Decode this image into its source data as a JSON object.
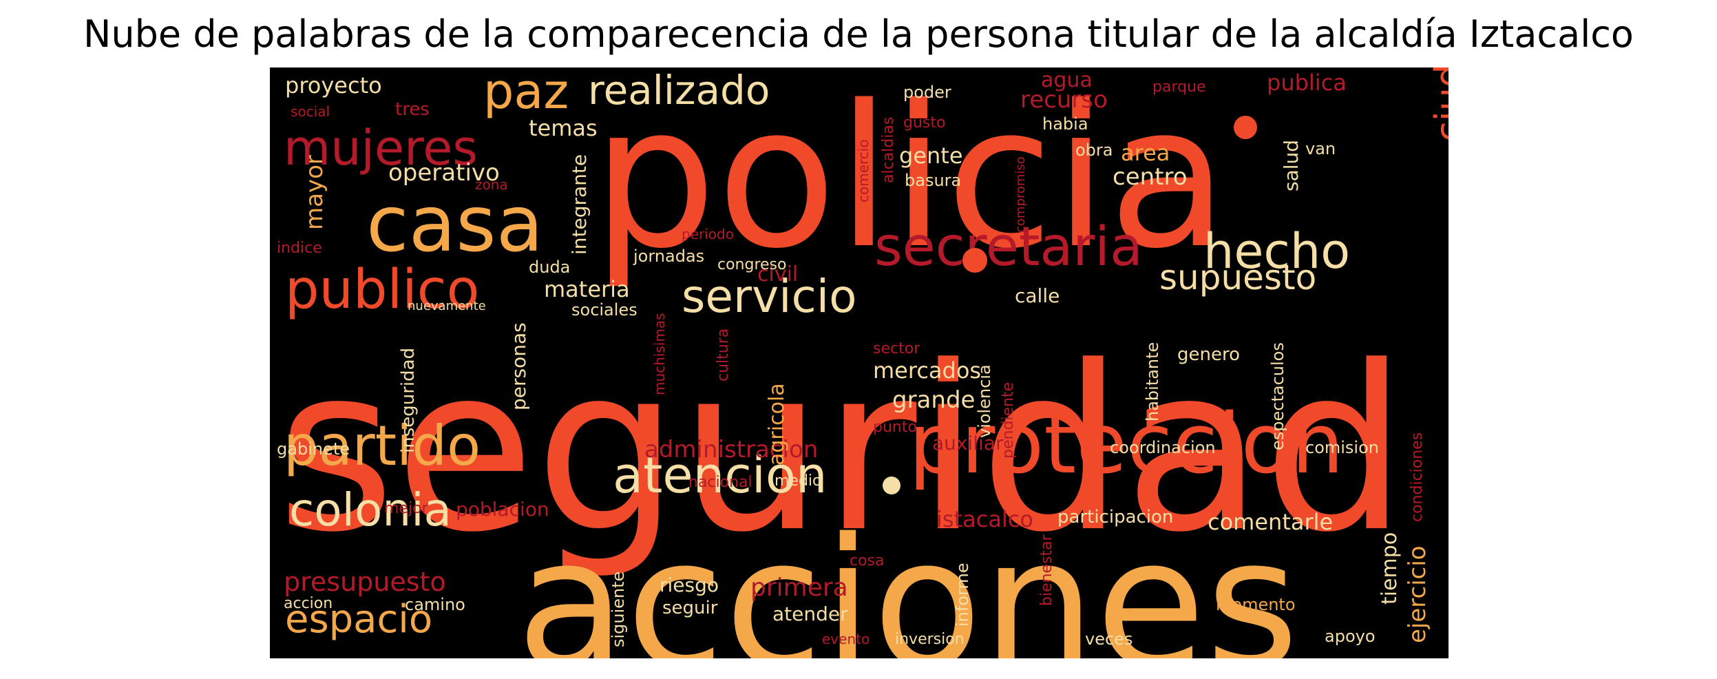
{
  "title": "Nube de palabras de la comparecencia de la persona titular de la alcaldía Iztacalco",
  "palette": {
    "background": "#000000",
    "red": "#f04a2a",
    "orange": "#f4a84a",
    "cream": "#f5dfa6",
    "darkred": "#b51a2a"
  },
  "words": [
    {
      "id": "w-seguridad",
      "text": "seguridad",
      "c": "red"
    },
    {
      "id": "w-policia",
      "text": "policia",
      "c": "red"
    },
    {
      "id": "w-acciones",
      "text": "acciones",
      "c": "orange"
    },
    {
      "id": "w-proteccion",
      "text": "proteccion",
      "c": "red"
    },
    {
      "id": "w-casa",
      "text": "casa",
      "c": "orange"
    },
    {
      "id": "w-secretaria",
      "text": "secretaria",
      "c": "darkred"
    },
    {
      "id": "w-publico",
      "text": "publico",
      "c": "red"
    },
    {
      "id": "w-servicio",
      "text": "servicio",
      "c": "cream"
    },
    {
      "id": "w-hecho",
      "text": "hecho",
      "c": "cream"
    },
    {
      "id": "w-partido",
      "text": "partido",
      "c": "orange"
    },
    {
      "id": "w-atencion",
      "text": "atencion",
      "c": "cream"
    },
    {
      "id": "w-colonia",
      "text": "colonia",
      "c": "cream"
    },
    {
      "id": "w-mujeres",
      "text": "mujeres",
      "c": "darkred"
    },
    {
      "id": "w-paz",
      "text": "paz",
      "c": "orange"
    },
    {
      "id": "w-realizado",
      "text": "realizado",
      "c": "cream"
    },
    {
      "id": "w-espacio",
      "text": "espacio",
      "c": "orange"
    },
    {
      "id": "w-supuesto",
      "text": "supuesto",
      "c": "cream"
    },
    {
      "id": "w-ciudadania",
      "text": "ciudadania",
      "c": "red"
    },
    {
      "id": "w-presupuesto",
      "text": "presupuesto",
      "c": "darkred"
    },
    {
      "id": "w-administracion",
      "text": "administracion",
      "c": "darkred"
    },
    {
      "id": "w-operativo",
      "text": "operativo",
      "c": "cream"
    },
    {
      "id": "w-proyecto",
      "text": "proyecto",
      "c": "cream"
    },
    {
      "id": "w-agua",
      "text": "agua",
      "c": "darkred"
    },
    {
      "id": "w-recurso",
      "text": "recurso",
      "c": "darkred"
    },
    {
      "id": "w-publica",
      "text": "publica",
      "c": "darkred"
    },
    {
      "id": "w-temas",
      "text": "temas",
      "c": "cream"
    },
    {
      "id": "w-centro",
      "text": "centro",
      "c": "cream"
    },
    {
      "id": "w-area",
      "text": "area",
      "c": "orange"
    },
    {
      "id": "w-gente",
      "text": "gente",
      "c": "cream"
    },
    {
      "id": "w-materia",
      "text": "materia",
      "c": "cream"
    },
    {
      "id": "w-civil",
      "text": "civil",
      "c": "darkred"
    },
    {
      "id": "w-calle",
      "text": "calle",
      "c": "cream"
    },
    {
      "id": "w-mercados",
      "text": "mercados",
      "c": "cream"
    },
    {
      "id": "w-grande",
      "text": "grande",
      "c": "cream"
    },
    {
      "id": "w-auxiliar",
      "text": "auxiliar",
      "c": "darkred"
    },
    {
      "id": "w-istacalco",
      "text": "istacalco",
      "c": "darkred"
    },
    {
      "id": "w-comentarle",
      "text": "comentarle",
      "c": "cream"
    },
    {
      "id": "w-poblacion",
      "text": "poblacion",
      "c": "darkred"
    },
    {
      "id": "w-primera",
      "text": "primera",
      "c": "darkred"
    },
    {
      "id": "w-participacion",
      "text": "participacion",
      "c": "cream"
    },
    {
      "id": "w-coordinacion",
      "text": "coordinacion",
      "c": "cream"
    },
    {
      "id": "w-gabinete",
      "text": "gabinete",
      "c": "cream"
    },
    {
      "id": "w-genero",
      "text": "genero",
      "c": "cream"
    },
    {
      "id": "w-comision",
      "text": "comision",
      "c": "cream"
    },
    {
      "id": "w-momento",
      "text": "momento",
      "c": "orange"
    },
    {
      "id": "w-apoyo",
      "text": "apoyo",
      "c": "cream"
    },
    {
      "id": "w-riesgo",
      "text": "riesgo",
      "c": "cream"
    },
    {
      "id": "w-seguir",
      "text": "seguir",
      "c": "cream"
    },
    {
      "id": "w-atender",
      "text": "atender",
      "c": "cream"
    },
    {
      "id": "w-cosa",
      "text": "cosa",
      "c": "darkred"
    },
    {
      "id": "w-accion",
      "text": "accion",
      "c": "cream"
    },
    {
      "id": "w-camino",
      "text": "camino",
      "c": "cream"
    },
    {
      "id": "w-basura",
      "text": "basura",
      "c": "cream"
    },
    {
      "id": "w-obra",
      "text": "obra",
      "c": "cream"
    },
    {
      "id": "w-salud",
      "text": "salud",
      "c": "cream"
    },
    {
      "id": "w-habia",
      "text": "habia",
      "c": "cream"
    },
    {
      "id": "w-poder",
      "text": "poder",
      "c": "cream"
    },
    {
      "id": "w-gusto",
      "text": "gusto",
      "c": "darkred"
    },
    {
      "id": "w-parque",
      "text": "parque",
      "c": "darkred"
    },
    {
      "id": "w-van",
      "text": "van",
      "c": "cream"
    },
    {
      "id": "w-social",
      "text": "social",
      "c": "darkred"
    },
    {
      "id": "w-tres",
      "text": "tres",
      "c": "darkred"
    },
    {
      "id": "w-zona",
      "text": "zona",
      "c": "darkred"
    },
    {
      "id": "w-indice",
      "text": "indice",
      "c": "darkred"
    },
    {
      "id": "w-duda",
      "text": "duda",
      "c": "cream"
    },
    {
      "id": "w-sociales",
      "text": "sociales",
      "c": "cream"
    },
    {
      "id": "w-jornadas",
      "text": "jornadas",
      "c": "cream"
    },
    {
      "id": "w-congreso",
      "text": "congreso",
      "c": "cream"
    },
    {
      "id": "w-periodo",
      "text": "periodo",
      "c": "darkred"
    },
    {
      "id": "w-nuevamente",
      "text": "nuevamente",
      "c": "cream"
    },
    {
      "id": "w-sector",
      "text": "sector",
      "c": "darkred"
    },
    {
      "id": "w-punto",
      "text": "punto",
      "c": "darkred"
    },
    {
      "id": "w-nacional",
      "text": "nacional",
      "c": "darkred"
    },
    {
      "id": "w-medio",
      "text": ".medio",
      "c": "cream"
    },
    {
      "id": "w-mejor",
      "text": "mejor",
      "c": "darkred"
    },
    {
      "id": "w-inversion",
      "text": "inversion",
      "c": "cream"
    },
    {
      "id": "w-veces",
      "text": "veces",
      "c": "cream"
    },
    {
      "id": "w-evento",
      "text": "evento",
      "c": "darkred"
    },
    {
      "id": "w-mayor",
      "text": "mayor",
      "c": "orange"
    },
    {
      "id": "w-integrante",
      "text": "integrante",
      "c": "cream"
    },
    {
      "id": "w-comercio",
      "text": "comercio",
      "c": "darkred"
    },
    {
      "id": "w-alcaldias",
      "text": "alcaldias",
      "c": "darkred"
    },
    {
      "id": "w-personas",
      "text": "personas",
      "c": "cream"
    },
    {
      "id": "w-inseguridad",
      "text": "inseguridad",
      "c": "cream"
    },
    {
      "id": "w-agricola",
      "text": "agricola",
      "c": "orange"
    },
    {
      "id": "w-cultura",
      "text": "cultura",
      "c": "darkred"
    },
    {
      "id": "w-muchisimas",
      "text": "muchisimas",
      "c": "darkred"
    },
    {
      "id": "w-violencia",
      "text": "violencia",
      "c": "cream"
    },
    {
      "id": "w-pendiente",
      "text": "pendiente",
      "c": "darkred"
    },
    {
      "id": "w-habitante",
      "text": "habitante",
      "c": "cream"
    },
    {
      "id": "w-espectaculos",
      "text": "espectaculos",
      "c": "cream"
    },
    {
      "id": "w-condiciones",
      "text": "condiciones",
      "c": "darkred"
    },
    {
      "id": "w-ejercicio",
      "text": "ejercicio",
      "c": "orange"
    },
    {
      "id": "w-tiempo",
      "text": "tiempo",
      "c": "cream"
    },
    {
      "id": "w-informe",
      "text": "informe",
      "c": "cream"
    },
    {
      "id": "w-bienestar",
      "text": "bienestar",
      "c": "darkred"
    },
    {
      "id": "w-siguiente",
      "text": "siguiente",
      "c": "cream"
    },
    {
      "id": "w-compromiso",
      "text": "compromiso",
      "c": "darkred"
    }
  ]
}
